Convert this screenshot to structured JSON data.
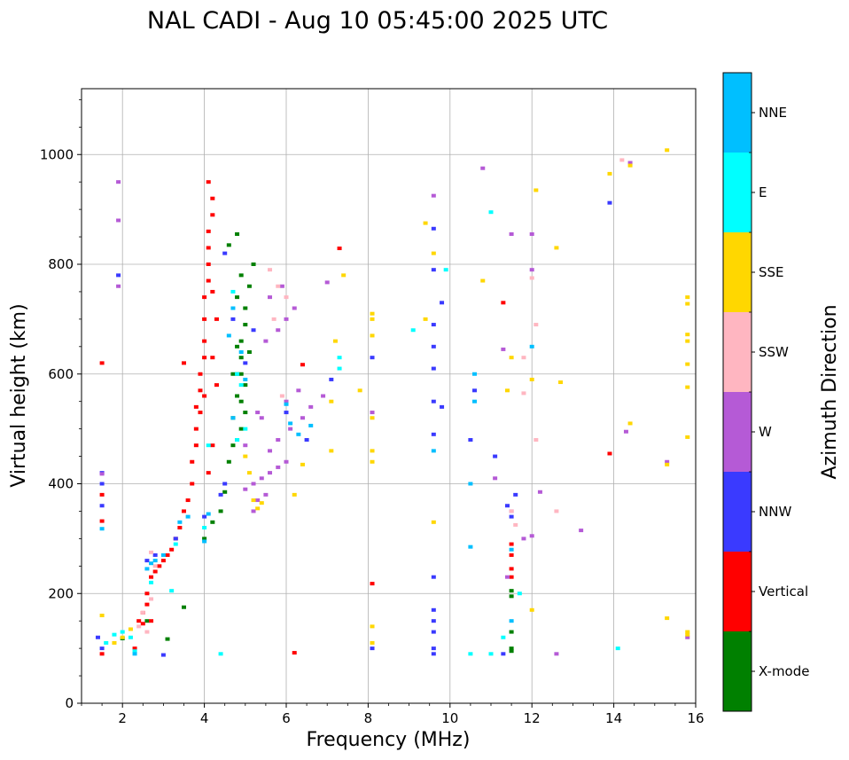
{
  "chart_data": {
    "type": "scatter",
    "title": "NAL CADI - Aug 10 05:45:00 2025 UTC",
    "xlabel": "Frequency (MHz)",
    "ylabel": "Virtual height (km)",
    "xlim": [
      1,
      16
    ],
    "ylim": [
      0,
      1120
    ],
    "xticks": [
      2,
      4,
      6,
      8,
      10,
      12,
      14,
      16
    ],
    "yticks": [
      0,
      200,
      400,
      600,
      800,
      1000
    ],
    "grid": true,
    "colorbar": {
      "label": "Azimuth Direction",
      "categories": [
        "X-mode",
        "Vertical",
        "NNW",
        "W",
        "SSW",
        "SSE",
        "E",
        "NNE"
      ],
      "colors": [
        "#008000",
        "#ff0000",
        "#3a3aff",
        "#b55ad6",
        "#ffb6c1",
        "#ffd700",
        "#00ffff",
        "#00bfff"
      ]
    },
    "series": [
      {
        "name": "X-mode",
        "points": [
          [
            2.0,
            118
          ],
          [
            2.6,
            150
          ],
          [
            3.1,
            117
          ],
          [
            3.5,
            175
          ],
          [
            4.0,
            300
          ],
          [
            4.2,
            330
          ],
          [
            4.4,
            350
          ],
          [
            4.5,
            385
          ],
          [
            4.6,
            440
          ],
          [
            4.7,
            470
          ],
          [
            4.7,
            520
          ],
          [
            4.8,
            560
          ],
          [
            4.8,
            600
          ],
          [
            4.9,
            630
          ],
          [
            4.9,
            660
          ],
          [
            5.0,
            690
          ],
          [
            5.0,
            720
          ],
          [
            5.1,
            760
          ],
          [
            5.2,
            800
          ],
          [
            4.8,
            740
          ],
          [
            4.9,
            780
          ],
          [
            4.8,
            855
          ],
          [
            4.6,
            835
          ],
          [
            4.8,
            650
          ],
          [
            5.0,
            580
          ],
          [
            4.9,
            550
          ],
          [
            11.5,
            205
          ],
          [
            11.5,
            195
          ],
          [
            11.5,
            130
          ],
          [
            11.5,
            100
          ],
          [
            11.5,
            95
          ],
          [
            4.9,
            600
          ],
          [
            5.1,
            640
          ],
          [
            4.7,
            600
          ],
          [
            5.0,
            530
          ],
          [
            4.9,
            500
          ],
          [
            4.8,
            480
          ]
        ]
      },
      {
        "name": "Vertical",
        "points": [
          [
            1.5,
            90
          ],
          [
            1.5,
            332
          ],
          [
            1.5,
            380
          ],
          [
            1.5,
            620
          ],
          [
            2.3,
            100
          ],
          [
            2.4,
            150
          ],
          [
            2.5,
            165
          ],
          [
            2.6,
            180
          ],
          [
            2.5,
            145
          ],
          [
            2.7,
            150
          ],
          [
            2.6,
            200
          ],
          [
            2.7,
            230
          ],
          [
            2.8,
            240
          ],
          [
            2.9,
            250
          ],
          [
            3.0,
            260
          ],
          [
            3.1,
            270
          ],
          [
            3.2,
            280
          ],
          [
            3.3,
            300
          ],
          [
            3.4,
            320
          ],
          [
            3.5,
            350
          ],
          [
            3.6,
            370
          ],
          [
            3.7,
            400
          ],
          [
            3.7,
            440
          ],
          [
            3.8,
            470
          ],
          [
            3.8,
            500
          ],
          [
            3.8,
            540
          ],
          [
            3.9,
            570
          ],
          [
            3.9,
            600
          ],
          [
            4.0,
            630
          ],
          [
            4.0,
            660
          ],
          [
            4.0,
            700
          ],
          [
            4.0,
            740
          ],
          [
            4.1,
            770
          ],
          [
            4.1,
            800
          ],
          [
            4.1,
            830
          ],
          [
            4.1,
            860
          ],
          [
            4.2,
            890
          ],
          [
            4.2,
            920
          ],
          [
            4.1,
            950
          ],
          [
            4.2,
            630
          ],
          [
            4.3,
            580
          ],
          [
            4.2,
            470
          ],
          [
            4.3,
            700
          ],
          [
            4.2,
            750
          ],
          [
            3.5,
            620
          ],
          [
            6.2,
            92
          ],
          [
            6.4,
            617
          ],
          [
            7.3,
            829
          ],
          [
            8.1,
            218
          ],
          [
            11.5,
            290
          ],
          [
            11.5,
            270
          ],
          [
            11.5,
            245
          ],
          [
            11.5,
            230
          ],
          [
            11.3,
            730
          ],
          [
            13.9,
            455
          ],
          [
            4.1,
            420
          ],
          [
            3.9,
            530
          ],
          [
            4.0,
            560
          ]
        ]
      },
      {
        "name": "NNW",
        "points": [
          [
            1.4,
            120
          ],
          [
            1.5,
            360
          ],
          [
            1.5,
            400
          ],
          [
            1.5,
            420
          ],
          [
            1.5,
            100
          ],
          [
            1.9,
            780
          ],
          [
            2.6,
            260
          ],
          [
            2.8,
            270
          ],
          [
            3.0,
            88
          ],
          [
            3.3,
            300
          ],
          [
            4.0,
            340
          ],
          [
            4.4,
            380
          ],
          [
            4.5,
            400
          ],
          [
            4.5,
            820
          ],
          [
            4.7,
            700
          ],
          [
            5.0,
            620
          ],
          [
            5.2,
            680
          ],
          [
            6.0,
            530
          ],
          [
            6.5,
            480
          ],
          [
            7.1,
            590
          ],
          [
            8.1,
            100
          ],
          [
            8.1,
            630
          ],
          [
            9.6,
            90
          ],
          [
            9.6,
            100
          ],
          [
            9.6,
            130
          ],
          [
            9.6,
            150
          ],
          [
            9.6,
            170
          ],
          [
            9.6,
            230
          ],
          [
            9.6,
            490
          ],
          [
            9.6,
            550
          ],
          [
            9.6,
            610
          ],
          [
            9.6,
            650
          ],
          [
            9.6,
            690
          ],
          [
            9.6,
            790
          ],
          [
            9.6,
            865
          ],
          [
            9.8,
            540
          ],
          [
            9.8,
            730
          ],
          [
            10.5,
            480
          ],
          [
            10.6,
            570
          ],
          [
            11.1,
            450
          ],
          [
            11.3,
            90
          ],
          [
            11.4,
            360
          ],
          [
            11.5,
            340
          ],
          [
            11.6,
            380
          ],
          [
            13.9,
            912
          ]
        ]
      },
      {
        "name": "W",
        "points": [
          [
            1.5,
            418
          ],
          [
            1.9,
            950
          ],
          [
            1.9,
            880
          ],
          [
            1.9,
            760
          ],
          [
            5.0,
            390
          ],
          [
            5.2,
            400
          ],
          [
            5.4,
            410
          ],
          [
            5.6,
            420
          ],
          [
            5.8,
            430
          ],
          [
            6.0,
            440
          ],
          [
            5.3,
            370
          ],
          [
            5.5,
            380
          ],
          [
            5.2,
            350
          ],
          [
            5.6,
            460
          ],
          [
            5.8,
            480
          ],
          [
            6.1,
            500
          ],
          [
            6.4,
            520
          ],
          [
            6.6,
            540
          ],
          [
            6.9,
            560
          ],
          [
            5.4,
            520
          ],
          [
            5.3,
            530
          ],
          [
            5.0,
            470
          ],
          [
            5.5,
            660
          ],
          [
            5.8,
            680
          ],
          [
            6.0,
            700
          ],
          [
            6.2,
            720
          ],
          [
            5.9,
            760
          ],
          [
            5.6,
            740
          ],
          [
            6.0,
            550
          ],
          [
            6.3,
            570
          ],
          [
            7.0,
            767
          ],
          [
            8.1,
            530
          ],
          [
            9.6,
            925
          ],
          [
            10.8,
            975
          ],
          [
            11.1,
            410
          ],
          [
            11.5,
            855
          ],
          [
            11.5,
            350
          ],
          [
            11.8,
            300
          ],
          [
            12.0,
            790
          ],
          [
            12.0,
            305
          ],
          [
            12.0,
            855
          ],
          [
            12.2,
            385
          ],
          [
            11.4,
            230
          ],
          [
            12.6,
            90
          ],
          [
            13.2,
            315
          ],
          [
            14.3,
            495
          ],
          [
            14.4,
            985
          ],
          [
            15.3,
            440
          ],
          [
            15.8,
            120
          ],
          [
            11.3,
            645
          ]
        ]
      },
      {
        "name": "SSW",
        "points": [
          [
            2.4,
            140
          ],
          [
            2.5,
            165
          ],
          [
            2.6,
            130
          ],
          [
            2.7,
            190
          ],
          [
            2.8,
            250
          ],
          [
            2.7,
            275
          ],
          [
            5.6,
            790
          ],
          [
            5.8,
            760
          ],
          [
            6.0,
            740
          ],
          [
            5.7,
            700
          ],
          [
            5.9,
            560
          ],
          [
            11.5,
            350
          ],
          [
            11.6,
            325
          ],
          [
            11.8,
            565
          ],
          [
            12.0,
            775
          ],
          [
            12.1,
            690
          ],
          [
            12.1,
            480
          ],
          [
            12.6,
            350
          ],
          [
            14.2,
            990
          ],
          [
            11.8,
            630
          ]
        ]
      },
      {
        "name": "SSE",
        "points": [
          [
            1.5,
            160
          ],
          [
            1.8,
            110
          ],
          [
            2.0,
            120
          ],
          [
            2.2,
            135
          ],
          [
            5.2,
            370
          ],
          [
            5.4,
            365
          ],
          [
            5.3,
            355
          ],
          [
            5.0,
            450
          ],
          [
            5.1,
            420
          ],
          [
            6.2,
            380
          ],
          [
            6.4,
            435
          ],
          [
            7.1,
            460
          ],
          [
            7.1,
            550
          ],
          [
            7.2,
            660
          ],
          [
            7.4,
            780
          ],
          [
            7.8,
            570
          ],
          [
            8.1,
            700
          ],
          [
            8.1,
            710
          ],
          [
            8.1,
            670
          ],
          [
            8.1,
            520
          ],
          [
            8.1,
            460
          ],
          [
            8.1,
            440
          ],
          [
            8.1,
            140
          ],
          [
            8.1,
            110
          ],
          [
            9.4,
            700
          ],
          [
            9.4,
            875
          ],
          [
            9.6,
            330
          ],
          [
            9.6,
            820
          ],
          [
            10.8,
            770
          ],
          [
            11.4,
            570
          ],
          [
            11.5,
            630
          ],
          [
            12.0,
            170
          ],
          [
            12.0,
            590
          ],
          [
            12.1,
            935
          ],
          [
            12.6,
            830
          ],
          [
            12.7,
            585
          ],
          [
            13.9,
            965
          ],
          [
            14.4,
            510
          ],
          [
            14.4,
            980
          ],
          [
            15.3,
            435
          ],
          [
            15.3,
            1008
          ],
          [
            15.3,
            155
          ],
          [
            15.8,
            740
          ],
          [
            15.8,
            728
          ],
          [
            15.8,
            672
          ],
          [
            15.8,
            660
          ],
          [
            15.8,
            618
          ],
          [
            15.8,
            576
          ],
          [
            15.8,
            485
          ],
          [
            15.8,
            130
          ],
          [
            15.8,
            125
          ]
        ]
      },
      {
        "name": "E",
        "points": [
          [
            1.6,
            110
          ],
          [
            1.8,
            125
          ],
          [
            2.0,
            130
          ],
          [
            2.2,
            120
          ],
          [
            2.3,
            95
          ],
          [
            2.7,
            220
          ],
          [
            3.2,
            205
          ],
          [
            3.3,
            290
          ],
          [
            4.0,
            320
          ],
          [
            4.1,
            470
          ],
          [
            4.4,
            90
          ],
          [
            4.7,
            750
          ],
          [
            4.8,
            600
          ],
          [
            4.9,
            580
          ],
          [
            4.8,
            480
          ],
          [
            5.0,
            500
          ],
          [
            7.3,
            630
          ],
          [
            7.3,
            610
          ],
          [
            9.1,
            680
          ],
          [
            9.9,
            790
          ],
          [
            10.5,
            90
          ],
          [
            11.0,
            90
          ],
          [
            11.0,
            895
          ],
          [
            11.3,
            120
          ],
          [
            11.7,
            200
          ],
          [
            14.1,
            100
          ]
        ]
      },
      {
        "name": "NNE",
        "points": [
          [
            1.5,
            318
          ],
          [
            2.3,
            90
          ],
          [
            2.6,
            245
          ],
          [
            2.7,
            255
          ],
          [
            2.8,
            260
          ],
          [
            3.0,
            270
          ],
          [
            3.4,
            330
          ],
          [
            3.6,
            340
          ],
          [
            4.0,
            295
          ],
          [
            4.1,
            345
          ],
          [
            4.7,
            520
          ],
          [
            4.6,
            670
          ],
          [
            4.7,
            720
          ],
          [
            4.9,
            640
          ],
          [
            5.0,
            590
          ],
          [
            6.0,
            545
          ],
          [
            6.1,
            510
          ],
          [
            6.3,
            490
          ],
          [
            6.6,
            506
          ],
          [
            9.6,
            460
          ],
          [
            10.5,
            400
          ],
          [
            10.5,
            285
          ],
          [
            10.6,
            550
          ],
          [
            10.6,
            600
          ],
          [
            11.5,
            150
          ],
          [
            11.5,
            280
          ],
          [
            12.0,
            650
          ]
        ]
      }
    ]
  }
}
